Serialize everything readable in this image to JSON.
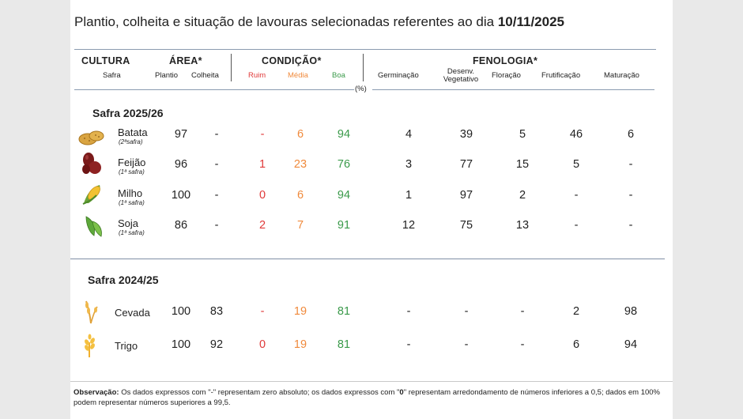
{
  "title": {
    "text": "Plantio, colheita e situação de lavouras selecionadas referentes ao dia ",
    "date": "10/11/2025"
  },
  "header": {
    "cultura": "CULTURA",
    "safra": "Safra",
    "area": "ÁREA*",
    "plantio": "Plantio",
    "colheita": "Colheita",
    "condicao": "CONDIÇÃO*",
    "ruim": "Ruim",
    "media": "Média",
    "boa": "Boa",
    "fenologia": "FENOLOGIA*",
    "germinacao": "Germinação",
    "desenv_1": "Desenv.",
    "desenv_2": "Vegetativo",
    "floracao": "Floração",
    "frutificacao": "Frutificação",
    "maturacao": "Maturação",
    "pct": "(%)"
  },
  "safra1": {
    "title": "Safra 2025/26",
    "rows": [
      {
        "name": "Batata",
        "sub": "(2ªsafra)",
        "icon": "potato-icon",
        "plantio": "97",
        "colheita": "-",
        "ruim": "-",
        "media": "6",
        "boa": "94",
        "germ": "4",
        "desenv": "39",
        "flor": "5",
        "frut": "46",
        "mat": "6"
      },
      {
        "name": "Feijão",
        "sub": "(1ª safra)",
        "icon": "bean-icon",
        "plantio": "96",
        "colheita": "-",
        "ruim": "1",
        "media": "23",
        "boa": "76",
        "germ": "3",
        "desenv": "77",
        "flor": "15",
        "frut": "5",
        "mat": "-"
      },
      {
        "name": "Milho",
        "sub": "(1ª safra)",
        "icon": "corn-icon",
        "plantio": "100",
        "colheita": "-",
        "ruim": "0",
        "media": "6",
        "boa": "94",
        "germ": "1",
        "desenv": "97",
        "flor": "2",
        "frut": "-",
        "mat": "-"
      },
      {
        "name": "Soja",
        "sub": "(1ª safra)",
        "icon": "soybean-icon",
        "plantio": "86",
        "colheita": "-",
        "ruim": "2",
        "media": "7",
        "boa": "91",
        "germ": "12",
        "desenv": "75",
        "flor": "13",
        "frut": "-",
        "mat": "-"
      }
    ]
  },
  "safra2": {
    "title": "Safra 2024/25",
    "rows": [
      {
        "name": "Cevada",
        "icon": "barley-icon",
        "plantio": "100",
        "colheita": "83",
        "ruim": "-",
        "media": "19",
        "boa": "81",
        "germ": "-",
        "desenv": "-",
        "flor": "-",
        "frut": "2",
        "mat": "98"
      },
      {
        "name": "Trigo",
        "icon": "wheat-icon",
        "plantio": "100",
        "colheita": "92",
        "ruim": "0",
        "media": "19",
        "boa": "81",
        "germ": "-",
        "desenv": "-",
        "flor": "-",
        "frut": "6",
        "mat": "94"
      }
    ]
  },
  "note": {
    "label": "Observação:",
    "text": " Os dados expressos com \"-\" representam zero absoluto; os dados expressos com \"",
    "bold_zero": "0",
    "text2": "\" representam arredondamento de números inferiores a 0,5; dados em 100% podem representar números superiores a 99,5."
  },
  "colors": {
    "ruim": "#e03a3a",
    "media": "#f08a3c",
    "boa": "#3a9a4a",
    "rule": "#8a9bb0"
  }
}
